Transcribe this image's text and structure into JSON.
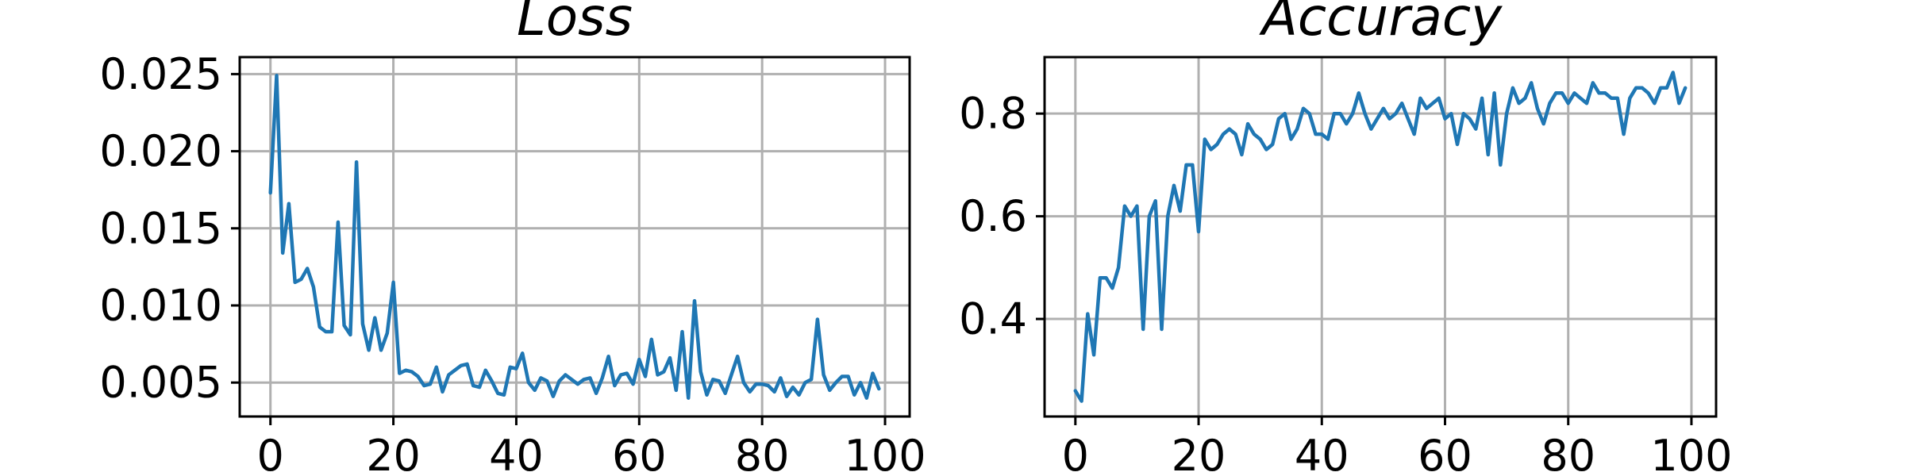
{
  "chart_data": [
    {
      "type": "line",
      "title": "Loss",
      "xlabel": "",
      "ylabel": "",
      "xlim": [
        -5,
        104
      ],
      "ylim": [
        0.0028,
        0.0261
      ],
      "xticks": [
        0,
        20,
        40,
        60,
        80,
        100
      ],
      "xtick_labels": [
        "0",
        "20",
        "40",
        "60",
        "80",
        "100"
      ],
      "yticks": [
        0.005,
        0.01,
        0.015,
        0.02,
        0.025
      ],
      "ytick_labels": [
        "0.005",
        "0.010",
        "0.015",
        "0.020",
        "0.025"
      ],
      "grid": true,
      "legend": "none",
      "series": [
        {
          "color": "#1f77b4",
          "x": [
            0,
            1,
            2,
            3,
            4,
            5,
            6,
            7,
            8,
            9,
            10,
            11,
            12,
            13,
            14,
            15,
            16,
            17,
            18,
            19,
            20,
            21,
            22,
            23,
            24,
            25,
            26,
            27,
            28,
            29,
            30,
            31,
            32,
            33,
            34,
            35,
            36,
            37,
            38,
            39,
            40,
            41,
            42,
            43,
            44,
            45,
            46,
            47,
            48,
            49,
            50,
            51,
            52,
            53,
            54,
            55,
            56,
            57,
            58,
            59,
            60,
            61,
            62,
            63,
            64,
            65,
            66,
            67,
            68,
            69,
            70,
            71,
            72,
            73,
            74,
            75,
            76,
            77,
            78,
            79,
            80,
            81,
            82,
            83,
            84,
            85,
            86,
            87,
            88,
            89,
            90,
            91,
            92,
            93,
            94,
            95,
            96,
            97,
            98,
            99
          ],
          "y": [
            0.0173,
            0.0249,
            0.0134,
            0.0166,
            0.0115,
            0.0117,
            0.0124,
            0.0112,
            0.0086,
            0.0083,
            0.0083,
            0.0154,
            0.0087,
            0.0081,
            0.0193,
            0.0088,
            0.0071,
            0.0092,
            0.0071,
            0.0082,
            0.0115,
            0.0056,
            0.0058,
            0.0057,
            0.0054,
            0.0048,
            0.0049,
            0.006,
            0.0044,
            0.0055,
            0.0058,
            0.0061,
            0.0062,
            0.0048,
            0.0047,
            0.0058,
            0.0051,
            0.0043,
            0.0042,
            0.006,
            0.0059,
            0.0069,
            0.005,
            0.0045,
            0.0053,
            0.0051,
            0.0041,
            0.0051,
            0.0055,
            0.0052,
            0.0049,
            0.0052,
            0.0053,
            0.0043,
            0.0053,
            0.0067,
            0.0048,
            0.0055,
            0.0056,
            0.0049,
            0.0065,
            0.0054,
            0.0078,
            0.0055,
            0.0057,
            0.0066,
            0.0045,
            0.0083,
            0.004,
            0.0103,
            0.0057,
            0.0042,
            0.0052,
            0.0051,
            0.0043,
            0.0055,
            0.0067,
            0.005,
            0.0044,
            0.0049,
            0.0049,
            0.0048,
            0.0044,
            0.0053,
            0.0041,
            0.0047,
            0.0042,
            0.005,
            0.0052,
            0.0091,
            0.0055,
            0.0045,
            0.005,
            0.0054,
            0.0054,
            0.0042,
            0.005,
            0.004,
            0.0056,
            0.0046
          ]
        }
      ]
    },
    {
      "type": "line",
      "title": "Accuracy",
      "xlabel": "",
      "ylabel": "",
      "xlim": [
        -5,
        104
      ],
      "ylim": [
        0.21,
        0.91
      ],
      "xticks": [
        0,
        20,
        40,
        60,
        80,
        100
      ],
      "xtick_labels": [
        "0",
        "20",
        "40",
        "60",
        "80",
        "100"
      ],
      "yticks": [
        0.4,
        0.6,
        0.8
      ],
      "ytick_labels": [
        "0.4",
        "0.6",
        "0.8"
      ],
      "grid": true,
      "legend": "none",
      "series": [
        {
          "color": "#1f77b4",
          "x": [
            0,
            1,
            2,
            3,
            4,
            5,
            6,
            7,
            8,
            9,
            10,
            11,
            12,
            13,
            14,
            15,
            16,
            17,
            18,
            19,
            20,
            21,
            22,
            23,
            24,
            25,
            26,
            27,
            28,
            29,
            30,
            31,
            32,
            33,
            34,
            35,
            36,
            37,
            38,
            39,
            40,
            41,
            42,
            43,
            44,
            45,
            46,
            47,
            48,
            49,
            50,
            51,
            52,
            53,
            54,
            55,
            56,
            57,
            58,
            59,
            60,
            61,
            62,
            63,
            64,
            65,
            66,
            67,
            68,
            69,
            70,
            71,
            72,
            73,
            74,
            75,
            76,
            77,
            78,
            79,
            80,
            81,
            82,
            83,
            84,
            85,
            86,
            87,
            88,
            89,
            90,
            91,
            92,
            93,
            94,
            95,
            96,
            97,
            98,
            99
          ],
          "y": [
            0.26,
            0.24,
            0.41,
            0.33,
            0.48,
            0.48,
            0.46,
            0.5,
            0.62,
            0.6,
            0.62,
            0.38,
            0.6,
            0.63,
            0.38,
            0.6,
            0.66,
            0.61,
            0.7,
            0.7,
            0.57,
            0.75,
            0.73,
            0.74,
            0.76,
            0.77,
            0.76,
            0.72,
            0.78,
            0.76,
            0.75,
            0.73,
            0.74,
            0.79,
            0.8,
            0.75,
            0.77,
            0.81,
            0.8,
            0.76,
            0.76,
            0.75,
            0.8,
            0.8,
            0.78,
            0.8,
            0.84,
            0.8,
            0.77,
            0.79,
            0.81,
            0.79,
            0.8,
            0.82,
            0.79,
            0.76,
            0.83,
            0.81,
            0.82,
            0.83,
            0.79,
            0.8,
            0.74,
            0.8,
            0.79,
            0.77,
            0.83,
            0.72,
            0.84,
            0.7,
            0.8,
            0.85,
            0.82,
            0.83,
            0.86,
            0.81,
            0.78,
            0.82,
            0.84,
            0.84,
            0.82,
            0.84,
            0.83,
            0.82,
            0.86,
            0.84,
            0.84,
            0.83,
            0.83,
            0.76,
            0.83,
            0.85,
            0.85,
            0.84,
            0.82,
            0.85,
            0.85,
            0.88,
            0.82,
            0.85
          ]
        }
      ]
    }
  ]
}
